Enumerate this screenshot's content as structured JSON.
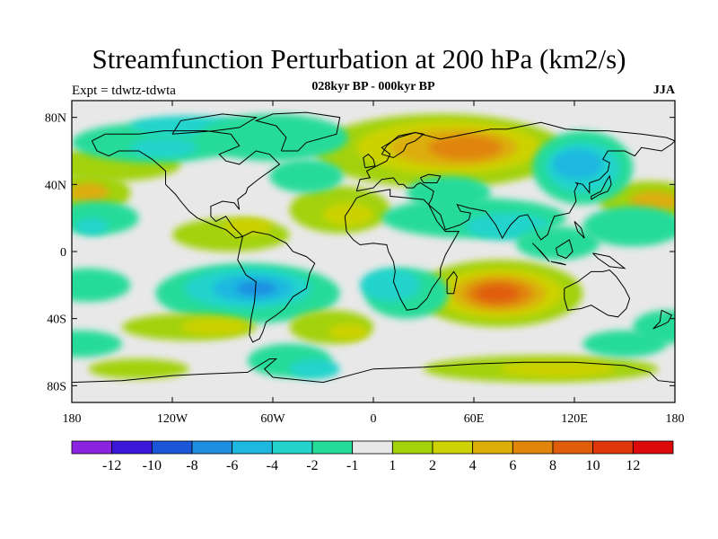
{
  "title": "Streamfunction Perturbation at 200 hPa (km2/s)",
  "subtitle": "028kyr BP - 000kyr BP",
  "experiment": "Expt = tdwtz-tdwta",
  "season": "JJA",
  "colors": {
    "background": "#e8e8e8",
    "coastline": "#000000",
    "neg12": "#8b24e0",
    "neg10": "#3b18d8",
    "neg8": "#1a56d8",
    "neg6": "#1e8ee0",
    "neg4": "#1cb8e0",
    "neg2": "#22d4cc",
    "neg1": "#27db9a",
    "pos1": "#a3d20a",
    "pos2": "#ccd204",
    "pos4": "#dcae0a",
    "pos6": "#e0840a",
    "pos8": "#e05d0c",
    "pos10": "#e0360c",
    "pos12": "#dc0a0a"
  },
  "chart_data": {
    "type": "contour-map",
    "projection": "cylindrical-equidistant",
    "title": "Streamfunction Perturbation at 200 hPa (km2/s)",
    "subtitle": "028kyr BP - 000kyr BP",
    "units": "km2/s",
    "lon_range": [
      -180,
      180
    ],
    "lat_range": [
      -90,
      90
    ],
    "x_tick_labels": [
      {
        "lon": -180,
        "label": "180"
      },
      {
        "lon": -120,
        "label": "120W"
      },
      {
        "lon": -60,
        "label": "60W"
      },
      {
        "lon": 0,
        "label": "0"
      },
      {
        "lon": 60,
        "label": "60E"
      },
      {
        "lon": 120,
        "label": "120E"
      },
      {
        "lon": 180,
        "label": "180"
      }
    ],
    "y_tick_labels": [
      {
        "lat": 80,
        "label": "80N"
      },
      {
        "lat": 40,
        "label": "40N"
      },
      {
        "lat": 0,
        "label": "0"
      },
      {
        "lat": -40,
        "label": "40S"
      },
      {
        "lat": -80,
        "label": "80S"
      }
    ],
    "colorbar": {
      "levels": [
        "-12",
        "-10",
        "-8",
        "-6",
        "-4",
        "-2",
        "-1",
        "1",
        "2",
        "4",
        "6",
        "8",
        "10",
        "12"
      ],
      "colors": [
        "#8b24e0",
        "#3b18d8",
        "#1a56d8",
        "#1e8ee0",
        "#1cb8e0",
        "#22d4cc",
        "#27db9a",
        "#e8e8e8",
        "#a3d20a",
        "#ccd204",
        "#dcae0a",
        "#e0840a",
        "#e05d0c",
        "#e0360c",
        "#dc0a0a"
      ]
    },
    "approx_features": [
      {
        "name": "positive-north-asia",
        "lon": 45,
        "lat": 60,
        "peak": 6
      },
      {
        "name": "positive-indian-ocean-south",
        "lon": 70,
        "lat": -25,
        "peak": 10
      },
      {
        "name": "negative-south-america",
        "lon": -70,
        "lat": -25,
        "peak": -6
      },
      {
        "name": "negative-east-asia",
        "lon": 120,
        "lat": 50,
        "peak": -4
      },
      {
        "name": "positive-north-pacific-west",
        "lon": 170,
        "lat": 35,
        "peak": 6
      },
      {
        "name": "positive-north-pacific-east",
        "lon": -170,
        "lat": 35,
        "peak": 6
      },
      {
        "name": "positive-tropical-atlantic",
        "lon": -10,
        "lat": 20,
        "peak": 2
      },
      {
        "name": "positive-south-pacific",
        "lon": -95,
        "lat": -55,
        "peak": 4
      }
    ]
  }
}
